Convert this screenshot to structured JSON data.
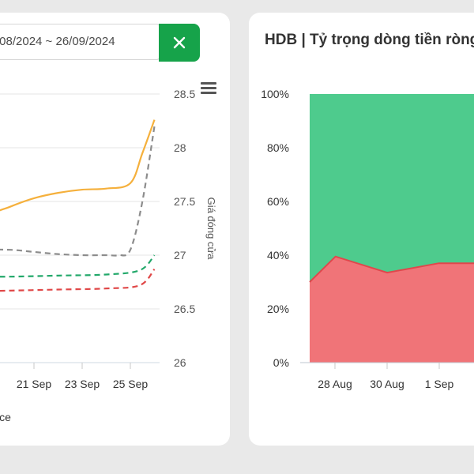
{
  "left_panel": {
    "date_range": "/08/2024 ~ 26/09/2024",
    "legend_partial": "ice",
    "right_axis_title": "Giá đóng cửa"
  },
  "right_panel": {
    "title": "HDB | Tỷ trọng dòng tiền ròng"
  },
  "chart_data": [
    {
      "type": "line",
      "title": "",
      "x_ticks": [
        "p",
        "21 Sep",
        "23 Sep",
        "25 Sep"
      ],
      "y_right_ticks": [
        "26",
        "26.5",
        "27",
        "27.5",
        "28",
        "28.5"
      ],
      "ylabel_right": "Giá đóng cửa",
      "ylim": [
        26,
        28.5
      ],
      "grid": true,
      "series": [
        {
          "color": "#f5b03c",
          "style": "solid",
          "x": [
            18,
            19,
            20,
            21,
            22,
            23,
            24,
            25,
            25.5,
            26
          ],
          "y": [
            27.1,
            27.35,
            27.45,
            27.53,
            27.58,
            27.61,
            27.62,
            27.67,
            27.95,
            28.26
          ]
        },
        {
          "color": "#8c8c8c",
          "style": "dashed",
          "x": [
            18,
            19,
            20,
            21,
            22,
            23,
            24,
            24.5,
            25,
            25.5,
            26
          ],
          "y": [
            26.95,
            27.04,
            27.05,
            27.03,
            27.01,
            27.0,
            27.0,
            27.0,
            27.05,
            27.5,
            28.2
          ]
        },
        {
          "color": "#22a86a",
          "style": "dashed",
          "x": [
            18,
            20,
            22,
            24,
            25.4,
            26
          ],
          "y": [
            26.8,
            26.8,
            26.81,
            26.82,
            26.86,
            27.0
          ]
        },
        {
          "color": "#e04848",
          "style": "dashed",
          "x": [
            18,
            20,
            22,
            24,
            25.4,
            26
          ],
          "y": [
            26.66,
            26.67,
            26.68,
            26.69,
            26.72,
            26.87
          ]
        }
      ]
    },
    {
      "type": "area",
      "title": "HDB | Tỷ trọng dòng tiền ròng",
      "x_ticks": [
        "28 Aug",
        "30 Aug",
        "1 Sep"
      ],
      "y_ticks": [
        "0%",
        "20%",
        "40%",
        "60%",
        "80%",
        "100%"
      ],
      "ylim": [
        0,
        100
      ],
      "series": [
        {
          "name": "",
          "color": "#f07478",
          "x": [
            27,
            28,
            30,
            32
          ],
          "values": [
            30,
            39.5,
            33.5,
            37
          ]
        },
        {
          "name": "",
          "color": "#4ecb8d",
          "x": [
            27,
            28,
            30,
            32
          ],
          "values": [
            70,
            60.5,
            66.5,
            63
          ]
        }
      ]
    }
  ]
}
